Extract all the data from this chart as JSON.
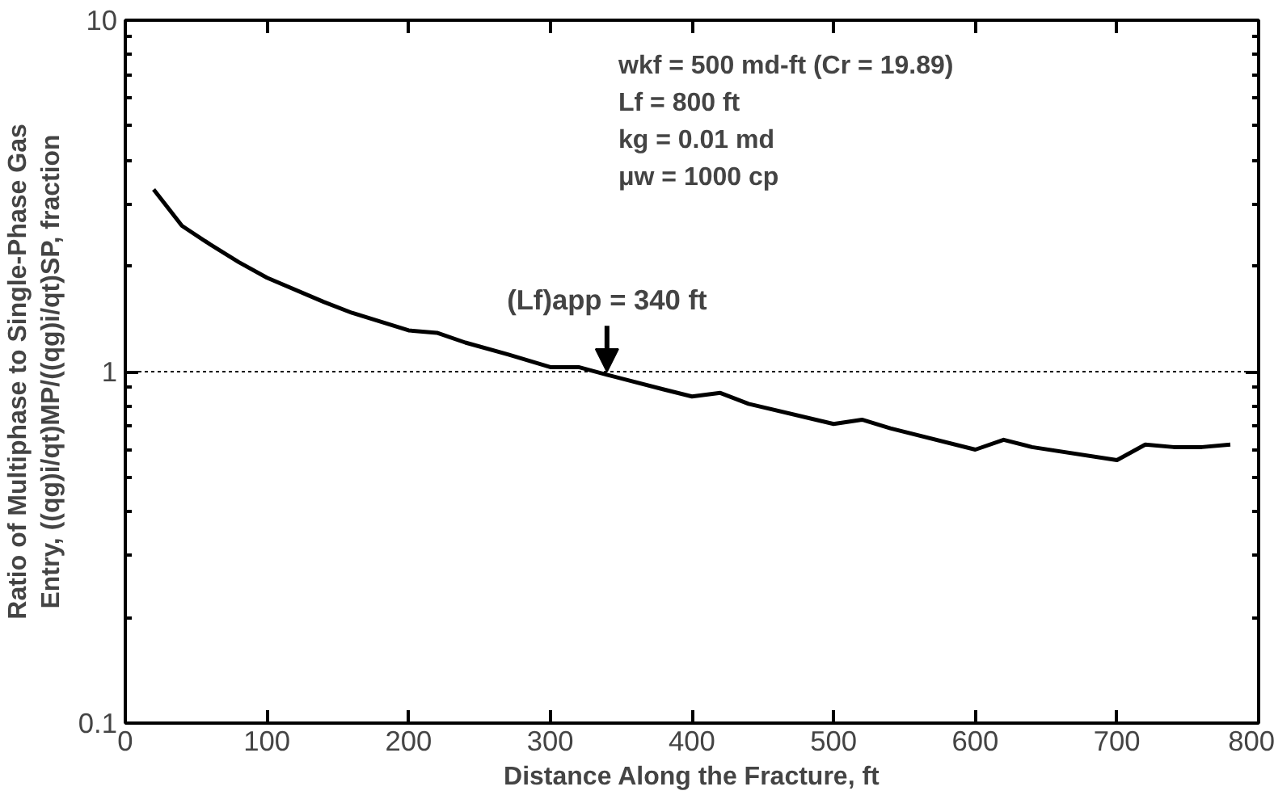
{
  "chart_data": {
    "type": "line",
    "xlabel": "Distance Along the Fracture, ft",
    "ylabel": "Ratio of Multiphase to Single-Phase Gas\nEntry, ((qg)i/qt)MP/((qg)i/qt)SP, fraction",
    "x": [
      20,
      40,
      60,
      80,
      100,
      140,
      160,
      200,
      220,
      240,
      270,
      300,
      320,
      340,
      380,
      400,
      420,
      440,
      500,
      520,
      540,
      600,
      620,
      640,
      700,
      720,
      740,
      760,
      780
    ],
    "series": [
      {
        "color": "#000000",
        "values": [
          3.3,
          2.6,
          2.3,
          2.05,
          1.85,
          1.58,
          1.47,
          1.31,
          1.29,
          1.21,
          1.12,
          1.03,
          1.03,
          0.98,
          0.89,
          0.85,
          0.87,
          0.81,
          0.71,
          0.73,
          0.69,
          0.6,
          0.64,
          0.61,
          0.56,
          0.62,
          0.61,
          0.61,
          0.62
        ]
      }
    ],
    "xlim": [
      0,
      800
    ],
    "xticks": [
      0,
      100,
      200,
      300,
      400,
      500,
      600,
      700,
      800
    ],
    "ylim": [
      0.1,
      10
    ],
    "yticks": [
      0.1,
      1,
      10
    ],
    "log": "y",
    "grid": false,
    "marker": "none",
    "line_style": "solid",
    "ref_lines": [
      {
        "axis": "y",
        "value": 1,
        "line_style": "dotted",
        "color": "#000000"
      }
    ],
    "annotations": [
      {
        "text": "(Lf)app = 340 ft",
        "x": 340,
        "y": 1
      },
      "wkf   =   500 md-ft (Cr = 19.89)",
      "Lf     =   800 ft",
      "kg     =   0.01 md",
      "μw     =   1000 cp"
    ]
  }
}
